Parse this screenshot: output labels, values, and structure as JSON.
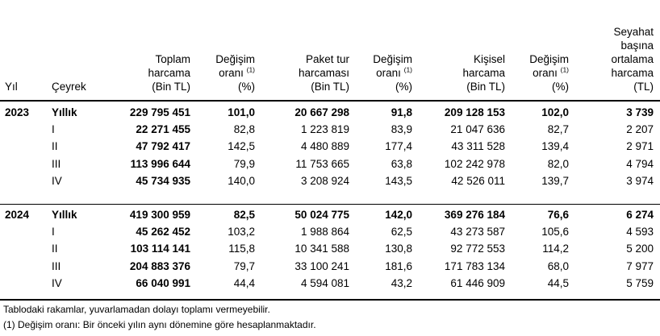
{
  "headers": {
    "year": "Yıl",
    "quarter": "Çeyrek",
    "total": [
      "Toplam",
      "harcama",
      "(Bin TL)"
    ],
    "change1": [
      "Değişim",
      "oranı",
      "(%)"
    ],
    "change_sup": "(1)",
    "package": [
      "Paket tur",
      "harcaması",
      "(Bin TL)"
    ],
    "change2": [
      "Değişim",
      "oranı",
      "(%)"
    ],
    "personal": [
      "Kişisel",
      "harcama",
      "(Bin TL)"
    ],
    "change3": [
      "Değişim",
      "oranı",
      "(%)"
    ],
    "avg": [
      "Seyahat",
      "başına",
      "ortalama",
      "harcama",
      "(TL)"
    ]
  },
  "groups": [
    {
      "year": "2023",
      "rows": [
        {
          "q": "Yıllık",
          "total": "229 795 451",
          "c1": "101,0",
          "pkg": "20 667 298",
          "c2": "91,8",
          "pers": "209 128 153",
          "c3": "102,0",
          "avg": "3 739",
          "bold": true
        },
        {
          "q": "I",
          "total": "22 271 455",
          "c1": "82,8",
          "pkg": "1 223 819",
          "c2": "83,9",
          "pers": "21 047 636",
          "c3": "82,7",
          "avg": "2 207",
          "bold": false
        },
        {
          "q": "II",
          "total": "47 792 417",
          "c1": "142,5",
          "pkg": "4 480 889",
          "c2": "177,4",
          "pers": "43 311 528",
          "c3": "139,4",
          "avg": "2 971",
          "bold": false
        },
        {
          "q": "III",
          "total": "113 996 644",
          "c1": "79,9",
          "pkg": "11 753 665",
          "c2": "63,8",
          "pers": "102 242 978",
          "c3": "82,0",
          "avg": "4 794",
          "bold": false
        },
        {
          "q": "IV",
          "total": "45 734 935",
          "c1": "140,0",
          "pkg": "3 208 924",
          "c2": "143,5",
          "pers": "42 526 011",
          "c3": "139,7",
          "avg": "3 974",
          "bold": false
        }
      ]
    },
    {
      "year": "2024",
      "rows": [
        {
          "q": "Yıllık",
          "total": "419 300 959",
          "c1": "82,5",
          "pkg": "50 024 775",
          "c2": "142,0",
          "pers": "369 276 184",
          "c3": "76,6",
          "avg": "6 274",
          "bold": true
        },
        {
          "q": "I",
          "total": "45 262 452",
          "c1": "103,2",
          "pkg": "1 988 864",
          "c2": "62,5",
          "pers": "43 273 587",
          "c3": "105,6",
          "avg": "4 593",
          "bold": false
        },
        {
          "q": "II",
          "total": "103 114 141",
          "c1": "115,8",
          "pkg": "10 341 588",
          "c2": "130,8",
          "pers": "92 772 553",
          "c3": "114,2",
          "avg": "5 200",
          "bold": false
        },
        {
          "q": "III",
          "total": "204 883 376",
          "c1": "79,7",
          "pkg": "33 100 241",
          "c2": "181,6",
          "pers": "171 783 134",
          "c3": "68,0",
          "avg": "7 977",
          "bold": false
        },
        {
          "q": "IV",
          "total": "66 040 991",
          "c1": "44,4",
          "pkg": "4 594 081",
          "c2": "43,2",
          "pers": "61 446 909",
          "c3": "44,5",
          "avg": "5 759",
          "bold": false
        }
      ]
    }
  ],
  "footnotes": [
    "Tablodaki rakamlar, yuvarlamadan dolayı toplamı vermeyebilir.",
    "(1) Değişim oranı: Bir önceki yılın aynı dönemine göre hesaplanmaktadır."
  ]
}
